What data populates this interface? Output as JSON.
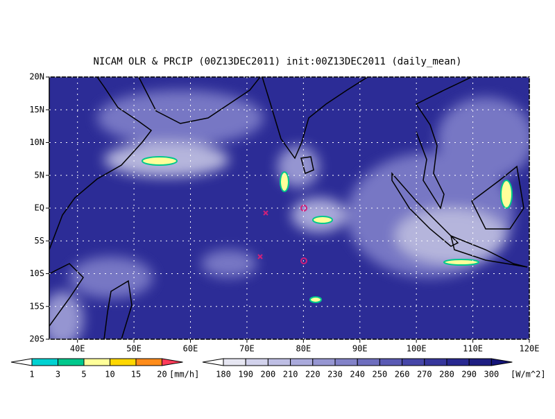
{
  "title": "NICAM OLR & PRCIP (00Z13DEC2011) init:00Z13DEC2011 (daily_mean)",
  "lon_range": [
    35,
    120
  ],
  "lat_range": [
    -20,
    20
  ],
  "lon_ticks": [
    {
      "value": 40,
      "label": "40E"
    },
    {
      "value": 50,
      "label": "50E"
    },
    {
      "value": 60,
      "label": "60E"
    },
    {
      "value": 70,
      "label": "70E"
    },
    {
      "value": 80,
      "label": "80E"
    },
    {
      "value": 90,
      "label": "90E"
    },
    {
      "value": 100,
      "label": "100E"
    },
    {
      "value": 110,
      "label": "110E"
    },
    {
      "value": 120,
      "label": "120E"
    }
  ],
  "lat_ticks": [
    {
      "value": 20,
      "label": "20N"
    },
    {
      "value": 15,
      "label": "15N"
    },
    {
      "value": 10,
      "label": "10N"
    },
    {
      "value": 5,
      "label": "5N"
    },
    {
      "value": 0,
      "label": "EQ"
    },
    {
      "value": -5,
      "label": "5S"
    },
    {
      "value": -10,
      "label": "10S"
    },
    {
      "value": -15,
      "label": "15S"
    },
    {
      "value": -20,
      "label": "20S"
    }
  ],
  "precip_legend": {
    "levels": [
      1,
      3,
      5,
      10,
      15,
      20
    ],
    "colors": [
      "#ffffff",
      "#00d2d2",
      "#00c88c",
      "#ffff9a",
      "#ffd700",
      "#ff8c1a",
      "#ff3c5a"
    ],
    "unit": "[mm/h]"
  },
  "olr_legend": {
    "levels": [
      180,
      190,
      200,
      210,
      220,
      230,
      240,
      250,
      260,
      270,
      280,
      290,
      300
    ],
    "colors": [
      "#ffffff",
      "#e6e6f2",
      "#d2d2ec",
      "#bebee4",
      "#aaaadc",
      "#9696d2",
      "#8282c8",
      "#6e6ebe",
      "#5a5ab4",
      "#4646a8",
      "#36369c",
      "#282890",
      "#1e1e82",
      "#141478"
    ],
    "unit": "[W/m^2]"
  }
}
